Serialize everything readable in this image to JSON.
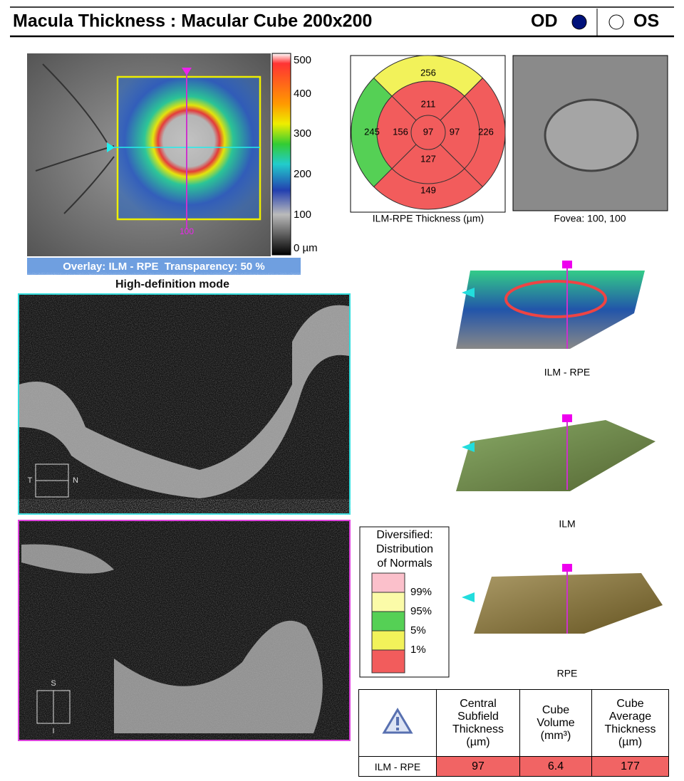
{
  "header": {
    "title": "Macula Thickness : Macular Cube 200x200",
    "od": "OD",
    "os": "OS"
  },
  "fundus": {
    "scale_labels": [
      "500",
      "400",
      "300",
      "200",
      "100",
      "0 µm"
    ],
    "marker": "100",
    "overlay": "Overlay: ILM - RPE  Transparency: 50 %",
    "mode": "High-definition mode"
  },
  "etdrs": {
    "outer_top": 256,
    "outer_left": 245,
    "outer_right": 226,
    "outer_bottom": 149,
    "inner_top": 211,
    "inner_left": 156,
    "inner_right": 97,
    "inner_bottom": 127,
    "center": 97,
    "caption": "ILM-RPE Thickness (µm)"
  },
  "fovea": {
    "caption": "Fovea: 100, 100"
  },
  "scans": {
    "horizontal": {
      "left": "T",
      "right": "N"
    },
    "vertical": {
      "top": "S",
      "bottom": "I"
    }
  },
  "renders": [
    "ILM - RPE",
    "ILM",
    "RPE"
  ],
  "legend": {
    "title": [
      "Diversified:",
      "Distribution",
      "of Normals"
    ],
    "levels": [
      "99%",
      "95%",
      "5%",
      "1%"
    ]
  },
  "table": {
    "headers": [
      "Central Subfield Thickness (µm)",
      "Cube Volume (mm³)",
      "Cube Average Thickness (µm)"
    ],
    "rows": [
      [
        "ILM - RPE",
        "97",
        "6.4",
        "177"
      ]
    ]
  }
}
